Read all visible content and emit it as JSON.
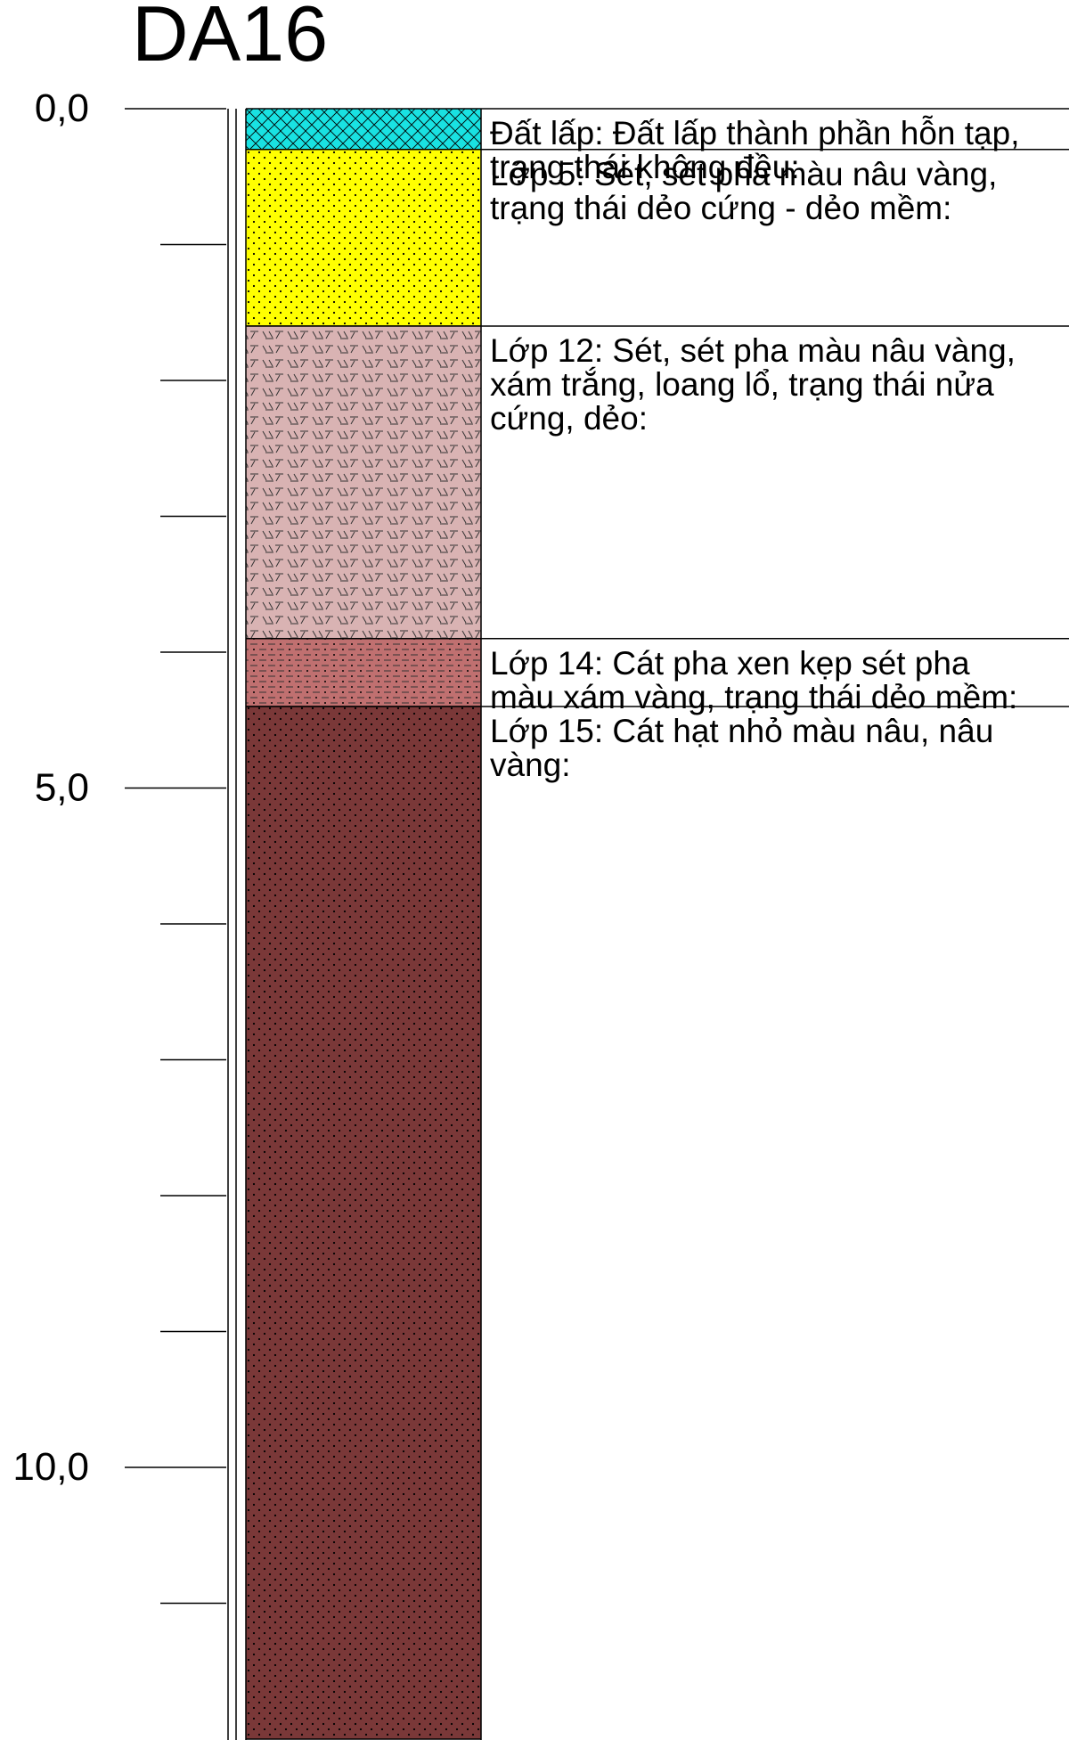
{
  "borehole": {
    "id": "DA16",
    "depth_unit": "m",
    "bottom_depth": 12.0,
    "depth_labels": [
      "0,0",
      "5,0",
      "10,0"
    ],
    "major_tick_depths": [
      0,
      5,
      10
    ],
    "minor_tick_depths": [
      1,
      2,
      3,
      4,
      6,
      7,
      8,
      9,
      11
    ]
  },
  "layers": [
    {
      "name": "fill-layer",
      "top": 0.0,
      "bottom": 0.3,
      "color": "#19e2e2",
      "pattern": "crosshatch",
      "description_lines": [
        "Đất lấp: Đất lấp thành phần hỗn tạp,",
        "trạng thái không đều:"
      ]
    },
    {
      "name": "layer-5",
      "top": 0.3,
      "bottom": 1.6,
      "color": "#ffff00",
      "pattern": "dots",
      "description_lines": [
        "Lớp 5: Sét, sét pha màu nâu vàng,",
        "trạng thái dẻo cứng - dẻo mềm:"
      ]
    },
    {
      "name": "layer-12",
      "top": 1.6,
      "bottom": 3.9,
      "color": "#d9b3b3",
      "pattern": "clay-dash",
      "description_lines": [
        "Lớp 12: Sét, sét pha màu nâu vàng,",
        "xám trắng, loang lổ, trạng thái nửa",
        "cứng, dẻo:"
      ]
    },
    {
      "name": "layer-14",
      "top": 3.9,
      "bottom": 4.4,
      "color": "#c07070",
      "pattern": "sandy-clay",
      "description_lines": [
        "Lớp 14: Cát pha xen kẹp sét pha",
        "màu xám vàng, trạng thái dẻo mềm:"
      ]
    },
    {
      "name": "layer-15",
      "top": 4.4,
      "bottom": 12.0,
      "color": "#7a3838",
      "pattern": "dots",
      "description_lines": [
        "Lớp 15: Cát hạt nhỏ màu nâu, nâu",
        "vàng:"
      ]
    }
  ]
}
